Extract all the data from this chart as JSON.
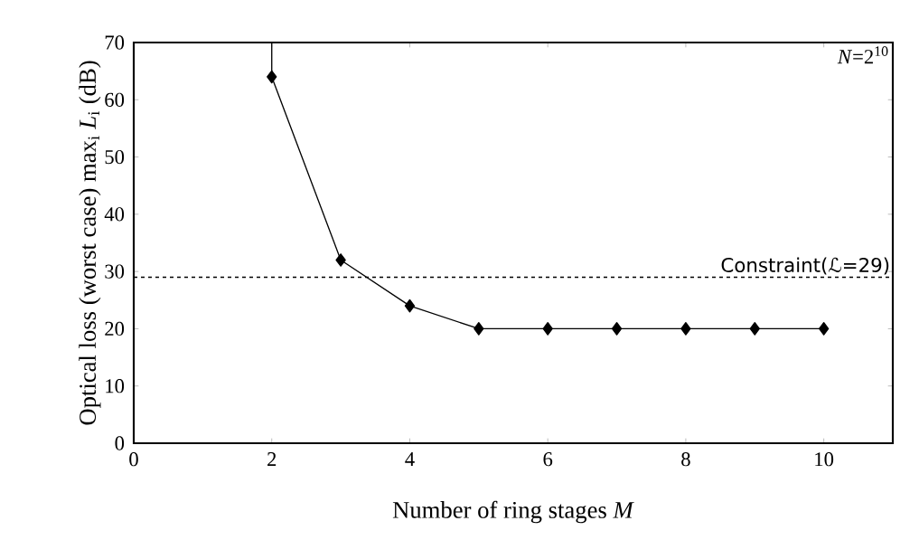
{
  "chart_data": {
    "type": "line",
    "xlabel": "Number of ring stages *M*",
    "ylabel": "Optical loss (worst case)  max$_{i}$ *L*$_{i}$ (dB)",
    "x": [
      2,
      3,
      4,
      5,
      6,
      7,
      8,
      9,
      10
    ],
    "series": [
      {
        "color": "#000000",
        "values": [
          64,
          32,
          24,
          20,
          20,
          20,
          20,
          20,
          20
        ],
        "marker": "diamond"
      },
      {
        "color": "#000000",
        "x": [
          2,
          2
        ],
        "values": [
          64,
          70
        ],
        "marker": "none"
      }
    ],
    "xlim": [
      0,
      11
    ],
    "ylim": [
      0,
      70
    ],
    "xticks": [
      0,
      2,
      4,
      6,
      8,
      10
    ],
    "yticks": [
      0,
      10,
      20,
      30,
      40,
      50,
      60,
      70
    ],
    "ref_lines": [
      {
        "axis": "y",
        "value": 29,
        "label": "Constraint(ℒ=29)",
        "color": "#000000",
        "line_style": "dashed"
      }
    ],
    "annotations": [
      "*N*=2$^{10}$"
    ],
    "grid": false
  }
}
